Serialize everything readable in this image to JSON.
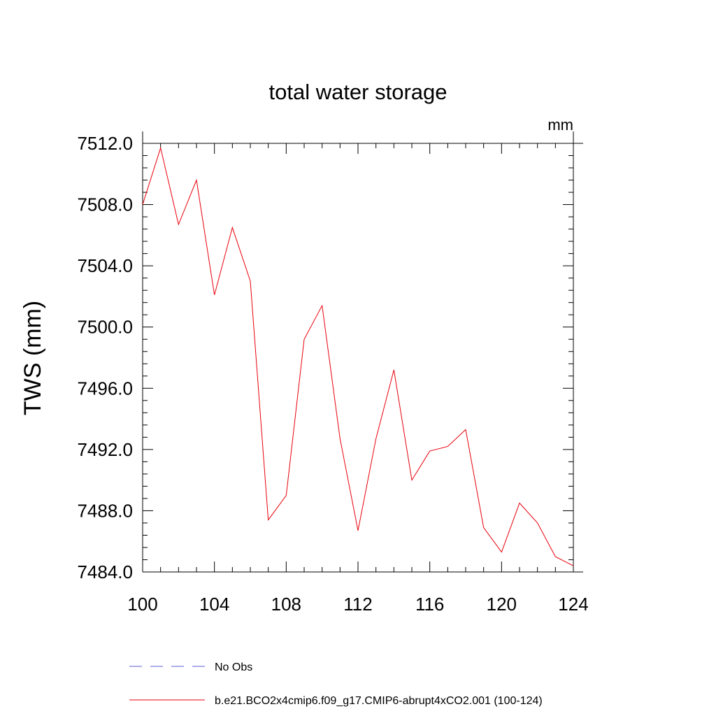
{
  "chart_data": {
    "type": "line",
    "title": "total water storage",
    "units_label": "mm",
    "ylabel": "TWS  (mm)",
    "xlabel": "",
    "xlim": [
      100,
      124
    ],
    "ylim": [
      7484,
      7512
    ],
    "x_ticks": [
      "100",
      "104",
      "108",
      "112",
      "116",
      "120",
      "124"
    ],
    "y_ticks": [
      "7484.0",
      "7488.0",
      "7492.0",
      "7496.0",
      "7500.0",
      "7504.0",
      "7508.0",
      "7512.0"
    ],
    "grid": false,
    "x": [
      100,
      101,
      102,
      103,
      104,
      105,
      106,
      107,
      108,
      109,
      110,
      111,
      112,
      113,
      114,
      115,
      116,
      117,
      118,
      119,
      120,
      121,
      122,
      123,
      124
    ],
    "series": [
      {
        "name": "b.e21.BCO2x4cmip6.f09_g17.CMIP6-abrupt4xCO2.001 (100-124)",
        "color": "#e8000b",
        "values": [
          7508.0,
          7511.7,
          7506.7,
          7509.6,
          7502.1,
          7506.5,
          7503.0,
          7487.4,
          7489.0,
          7499.2,
          7501.4,
          7492.7,
          7486.7,
          7492.7,
          7497.2,
          7490.0,
          7491.9,
          7492.2,
          7493.3,
          7486.9,
          7485.3,
          7488.5,
          7487.2,
          7485.0,
          7484.4
        ]
      }
    ],
    "legend": [
      {
        "label": "No Obs",
        "color": "#5b5bd6",
        "style": "dashed"
      },
      {
        "label": "b.e21.BCO2x4cmip6.f09_g17.CMIP6-abrupt4xCO2.001 (100-124)",
        "color": "#e8000b",
        "style": "solid"
      }
    ],
    "legend_position": "bottom"
  }
}
